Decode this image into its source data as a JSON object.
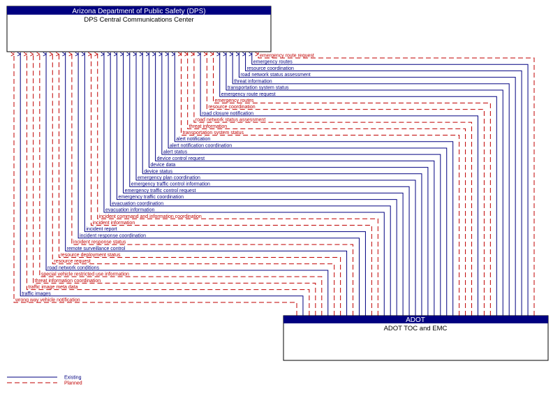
{
  "nodes": [
    {
      "header": "Arizona Department of Public Safety (DPS)",
      "label": "DPS Central Communications Center"
    },
    {
      "header": "ADOT",
      "label": "ADOT TOC and EMC"
    }
  ],
  "flows": [
    {
      "label": "emergency route request",
      "status": "planned"
    },
    {
      "label": "emergency routes",
      "status": "existing"
    },
    {
      "label": "resource coordination",
      "status": "existing"
    },
    {
      "label": "road network status assessment",
      "status": "existing"
    },
    {
      "label": "threat information",
      "status": "existing"
    },
    {
      "label": "transportation system status",
      "status": "existing"
    },
    {
      "label": "emergency route request",
      "status": "existing"
    },
    {
      "label": "emergency routes",
      "status": "planned"
    },
    {
      "label": "resource coordination",
      "status": "planned"
    },
    {
      "label": "road closure notification",
      "status": "existing"
    },
    {
      "label": "road network status assessment",
      "status": "planned"
    },
    {
      "label": "threat information",
      "status": "planned"
    },
    {
      "label": "transportation system status",
      "status": "planned"
    },
    {
      "label": "alert notification",
      "status": "existing"
    },
    {
      "label": "alert notification coordination",
      "status": "existing"
    },
    {
      "label": "alert status",
      "status": "existing"
    },
    {
      "label": "device control request",
      "status": "existing"
    },
    {
      "label": "device data",
      "status": "existing"
    },
    {
      "label": "device status",
      "status": "existing"
    },
    {
      "label": "emergency plan coordination",
      "status": "existing"
    },
    {
      "label": "emergency traffic control information",
      "status": "existing"
    },
    {
      "label": "emergency traffic control request",
      "status": "existing"
    },
    {
      "label": "emergency traffic coordination",
      "status": "existing"
    },
    {
      "label": "evacuation coordination",
      "status": "existing"
    },
    {
      "label": "evacuation information",
      "status": "existing"
    },
    {
      "label": "incident command and information coordination",
      "status": "planned"
    },
    {
      "label": "incident information",
      "status": "planned"
    },
    {
      "label": "incident report",
      "status": "existing"
    },
    {
      "label": "incident response coordination",
      "status": "existing"
    },
    {
      "label": "incident response status",
      "status": "planned"
    },
    {
      "label": "remote surveillance control",
      "status": "existing"
    },
    {
      "label": "resource deployment status",
      "status": "planned"
    },
    {
      "label": "resource request",
      "status": "planned"
    },
    {
      "label": "road network conditions",
      "status": "existing"
    },
    {
      "label": "special vehicle restricted use information",
      "status": "planned"
    },
    {
      "label": "threat information coordination",
      "status": "planned"
    },
    {
      "label": "traffic image meta data",
      "status": "planned"
    },
    {
      "label": "traffic images",
      "status": "existing"
    },
    {
      "label": "wrong way vehicle notification",
      "status": "planned"
    }
  ],
  "legend": [
    {
      "label": "Existing",
      "status": "existing"
    },
    {
      "label": "Planned",
      "status": "planned"
    }
  ]
}
